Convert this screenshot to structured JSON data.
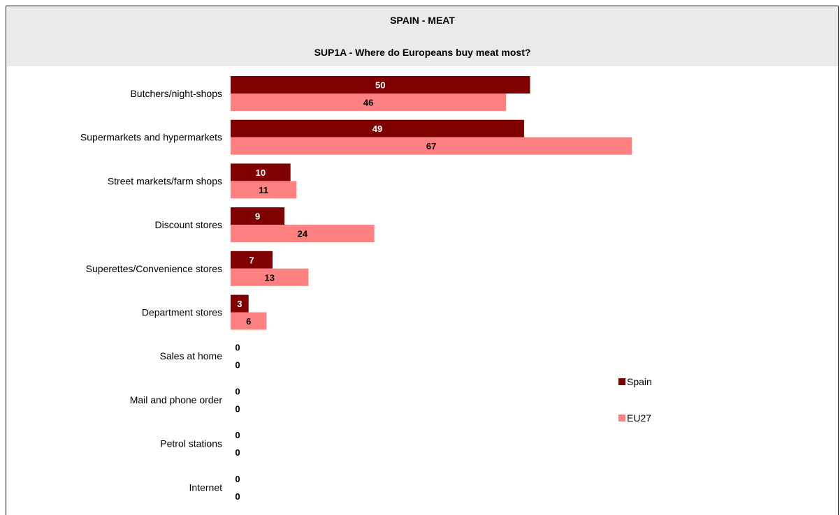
{
  "header": {
    "title": "SPAIN - MEAT",
    "subtitle": "SUP1A - Where do Europeans buy meat most?"
  },
  "colors": {
    "spain": "#800000",
    "eu27": "#ff8080",
    "header_bg": "#eaeaea"
  },
  "chart_data": {
    "type": "bar",
    "orientation": "horizontal",
    "title": "SPAIN - MEAT",
    "subtitle": "SUP1A - Where do Europeans buy meat most?",
    "categories": [
      "Butchers/night-shops",
      "Supermarkets and hypermarkets",
      "Street markets/farm shops",
      "Discount stores",
      "Superettes/Convenience stores",
      "Department stores",
      "Sales at home",
      "Mail and phone order",
      "Petrol stations",
      "Internet"
    ],
    "series": [
      {
        "name": "Spain",
        "color": "#800000",
        "label_color": "#ffffff",
        "values": [
          50,
          49,
          10,
          9,
          7,
          3,
          0,
          0,
          0,
          0
        ]
      },
      {
        "name": "EU27",
        "color": "#ff8080",
        "label_color": "#000000",
        "values": [
          46,
          67,
          11,
          24,
          13,
          6,
          0,
          0,
          0,
          0
        ]
      }
    ],
    "xlim": [
      0,
      100
    ],
    "grid": false,
    "legend_position": "right"
  }
}
